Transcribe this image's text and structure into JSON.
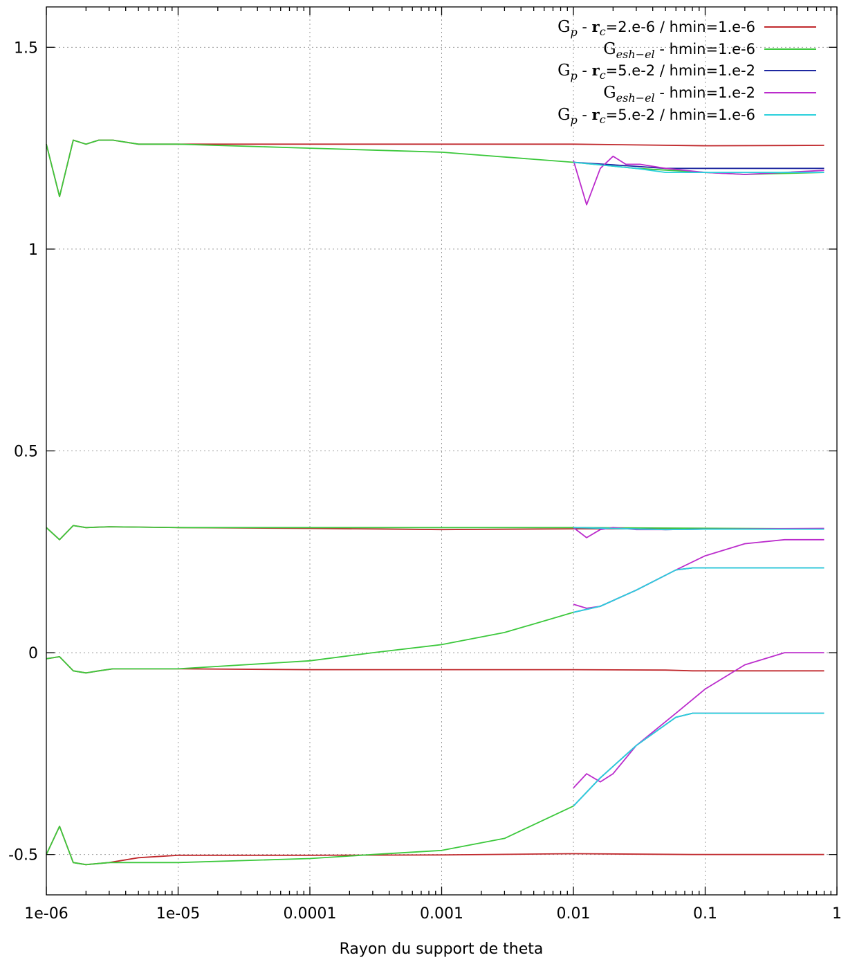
{
  "chart_data": {
    "type": "line",
    "xlabel": "Rayon du support de theta",
    "ylabel": "",
    "x_scale": "log",
    "xlim": [
      1e-06,
      1
    ],
    "ylim": [
      -0.6,
      1.6
    ],
    "grid": true,
    "legend_position": "top-right",
    "x_ticks": [
      {
        "value": 1e-06,
        "label": "1e-06"
      },
      {
        "value": 1e-05,
        "label": "1e-05"
      },
      {
        "value": 0.0001,
        "label": "0.0001"
      },
      {
        "value": 0.001,
        "label": "0.001"
      },
      {
        "value": 0.01,
        "label": "0.01"
      },
      {
        "value": 0.1,
        "label": "0.1"
      },
      {
        "value": 1,
        "label": "1"
      }
    ],
    "y_ticks": [
      {
        "value": 1.5,
        "label": "1.5"
      },
      {
        "value": 1,
        "label": "1"
      },
      {
        "value": 0.5,
        "label": "0.5"
      },
      {
        "value": 0,
        "label": "0"
      },
      {
        "value": -0.5,
        "label": "-0.5"
      }
    ],
    "series": [
      {
        "id": "s1",
        "color": "#c0282c",
        "legend": {
          "sym": "G",
          "sub": "p",
          "rc": "r",
          "rcsub": "c",
          "text": " - ",
          "after": "=2.e-6 / hmin=1.e-6"
        },
        "lines": [
          {
            "x": [
              1e-06,
              1.26e-06,
              1.6e-06,
              2e-06,
              2.5e-06,
              3.2e-06,
              5e-06,
              1e-05,
              0.0001,
              0.001,
              0.01,
              0.1,
              0.8
            ],
            "y": [
              1.26,
              1.13,
              1.27,
              1.26,
              1.27,
              1.27,
              1.26,
              1.26,
              1.26,
              1.26,
              1.26,
              1.256,
              1.257
            ]
          },
          {
            "x": [
              1e-06,
              1.26e-06,
              1.6e-06,
              2e-06,
              3e-06,
              1e-05,
              0.0001,
              0.001,
              0.01,
              0.1,
              0.8
            ],
            "y": [
              0.31,
              0.28,
              0.315,
              0.31,
              0.312,
              0.31,
              0.308,
              0.305,
              0.307,
              0.307,
              0.306
            ]
          },
          {
            "x": [
              1e-06,
              1.26e-06,
              1.6e-06,
              2e-06,
              2.5e-06,
              3.2e-06,
              1e-05,
              0.0001,
              0.001,
              0.01,
              0.05,
              0.08,
              0.8
            ],
            "y": [
              -0.015,
              -0.01,
              -0.045,
              -0.05,
              -0.045,
              -0.04,
              -0.04,
              -0.042,
              -0.042,
              -0.042,
              -0.043,
              -0.045,
              -0.045
            ]
          },
          {
            "x": [
              1e-06,
              1.26e-06,
              1.6e-06,
              2e-06,
              3e-06,
              5e-06,
              1e-05,
              0.0001,
              0.001,
              0.01,
              0.08,
              0.8
            ],
            "y": [
              -0.5,
              -0.43,
              -0.52,
              -0.525,
              -0.52,
              -0.508,
              -0.502,
              -0.502,
              -0.501,
              -0.498,
              -0.5,
              -0.5
            ]
          }
        ]
      },
      {
        "id": "s2",
        "color": "#3cc83c",
        "legend": {
          "sym": "G",
          "sub": "esh−el",
          "rc": "",
          "rcsub": "",
          "text": " - ",
          "after": "hmin=1.e-6"
        },
        "lines": [
          {
            "x": [
              1e-06,
              1.26e-06,
              1.6e-06,
              2e-06,
              2.5e-06,
              3.2e-06,
              5e-06,
              1e-05,
              0.0001,
              0.001,
              0.01,
              0.03,
              0.1,
              0.2,
              0.8
            ],
            "y": [
              1.26,
              1.13,
              1.27,
              1.26,
              1.27,
              1.27,
              1.26,
              1.26,
              1.25,
              1.24,
              1.215,
              1.2,
              1.19,
              1.185,
              1.19
            ]
          },
          {
            "x": [
              1e-06,
              1.26e-06,
              1.6e-06,
              2e-06,
              3e-06,
              1e-05,
              0.0001,
              0.001,
              0.01,
              0.8
            ],
            "y": [
              0.31,
              0.28,
              0.315,
              0.31,
              0.312,
              0.31,
              0.31,
              0.31,
              0.31,
              0.307
            ]
          },
          {
            "x": [
              1e-06,
              1.26e-06,
              1.6e-06,
              2e-06,
              2.5e-06,
              3.2e-06,
              1e-05,
              0.0001,
              0.0003,
              0.001,
              0.003,
              0.01
            ],
            "y": [
              -0.015,
              -0.01,
              -0.045,
              -0.05,
              -0.045,
              -0.04,
              -0.04,
              -0.02,
              0.0,
              0.02,
              0.05,
              0.1
            ]
          },
          {
            "x": [
              1e-06,
              1.26e-06,
              1.6e-06,
              2e-06,
              3e-06,
              1e-05,
              0.0001,
              0.0003,
              0.001,
              0.003,
              0.01
            ],
            "y": [
              -0.5,
              -0.43,
              -0.52,
              -0.525,
              -0.52,
              -0.52,
              -0.51,
              -0.5,
              -0.49,
              -0.46,
              -0.38
            ]
          }
        ]
      },
      {
        "id": "s3",
        "color": "#1e28a0",
        "legend": {
          "sym": "G",
          "sub": "p",
          "rc": "r",
          "rcsub": "c",
          "text": " - ",
          "after": "=5.e-2 / hmin=1.e-2"
        },
        "lines": [
          {
            "x": [
              0.01,
              0.03,
              0.05,
              0.1,
              0.8
            ],
            "y": [
              1.215,
              1.205,
              1.2,
              1.2,
              1.2
            ]
          },
          {
            "x": [
              0.01,
              0.05,
              0.1,
              0.8
            ],
            "y": [
              0.31,
              0.305,
              0.306,
              0.307
            ]
          },
          {
            "x": [
              0.01,
              0.016,
              0.03,
              0.06,
              0.08,
              0.8
            ],
            "y": [
              0.1,
              0.115,
              0.155,
              0.205,
              0.21,
              0.21
            ]
          },
          {
            "x": [
              0.01,
              0.016,
              0.03,
              0.06,
              0.08,
              0.8
            ],
            "y": [
              -0.38,
              -0.31,
              -0.23,
              -0.16,
              -0.15,
              -0.15
            ]
          }
        ]
      },
      {
        "id": "s4",
        "color": "#bb2ccc",
        "legend": {
          "sym": "G",
          "sub": "esh−el",
          "rc": "",
          "rcsub": "",
          "text": " - ",
          "after": "hmin=1.e-2"
        },
        "lines": [
          {
            "x": [
              0.01,
              0.0126,
              0.016,
              0.02,
              0.025,
              0.032,
              0.05,
              0.1,
              0.2,
              0.8
            ],
            "y": [
              1.22,
              1.11,
              1.2,
              1.23,
              1.21,
              1.21,
              1.2,
              1.19,
              1.185,
              1.195
            ]
          },
          {
            "x": [
              0.01,
              0.0126,
              0.016,
              0.02,
              0.03,
              0.05,
              0.1,
              0.8
            ],
            "y": [
              0.31,
              0.285,
              0.305,
              0.31,
              0.305,
              0.305,
              0.306,
              0.308
            ]
          },
          {
            "x": [
              0.01,
              0.0126,
              0.016,
              0.03,
              0.06,
              0.1,
              0.2,
              0.4,
              0.8
            ],
            "y": [
              0.12,
              0.11,
              0.115,
              0.155,
              0.205,
              0.24,
              0.27,
              0.28,
              0.28
            ]
          },
          {
            "x": [
              0.01,
              0.0126,
              0.016,
              0.02,
              0.03,
              0.06,
              0.1,
              0.2,
              0.4,
              0.8
            ],
            "y": [
              -0.335,
              -0.3,
              -0.32,
              -0.3,
              -0.23,
              -0.15,
              -0.09,
              -0.03,
              0.0,
              0.0
            ]
          }
        ]
      },
      {
        "id": "s5",
        "color": "#2ad0dc",
        "legend": {
          "sym": "G",
          "sub": "p",
          "rc": "r",
          "rcsub": "c",
          "text": " - ",
          "after": "=5.e-2 / hmin=1.e-6"
        },
        "lines": [
          {
            "x": [
              0.01,
              0.03,
              0.05,
              0.1,
              0.8
            ],
            "y": [
              1.215,
              1.2,
              1.19,
              1.19,
              1.19
            ]
          },
          {
            "x": [
              0.01,
              0.05,
              0.1,
              0.8
            ],
            "y": [
              0.31,
              0.305,
              0.306,
              0.306
            ]
          },
          {
            "x": [
              0.01,
              0.016,
              0.03,
              0.06,
              0.08,
              0.8
            ],
            "y": [
              0.1,
              0.115,
              0.155,
              0.205,
              0.21,
              0.21
            ]
          },
          {
            "x": [
              0.01,
              0.016,
              0.03,
              0.06,
              0.08,
              0.8
            ],
            "y": [
              -0.38,
              -0.31,
              -0.23,
              -0.16,
              -0.15,
              -0.15
            ]
          }
        ]
      }
    ]
  }
}
